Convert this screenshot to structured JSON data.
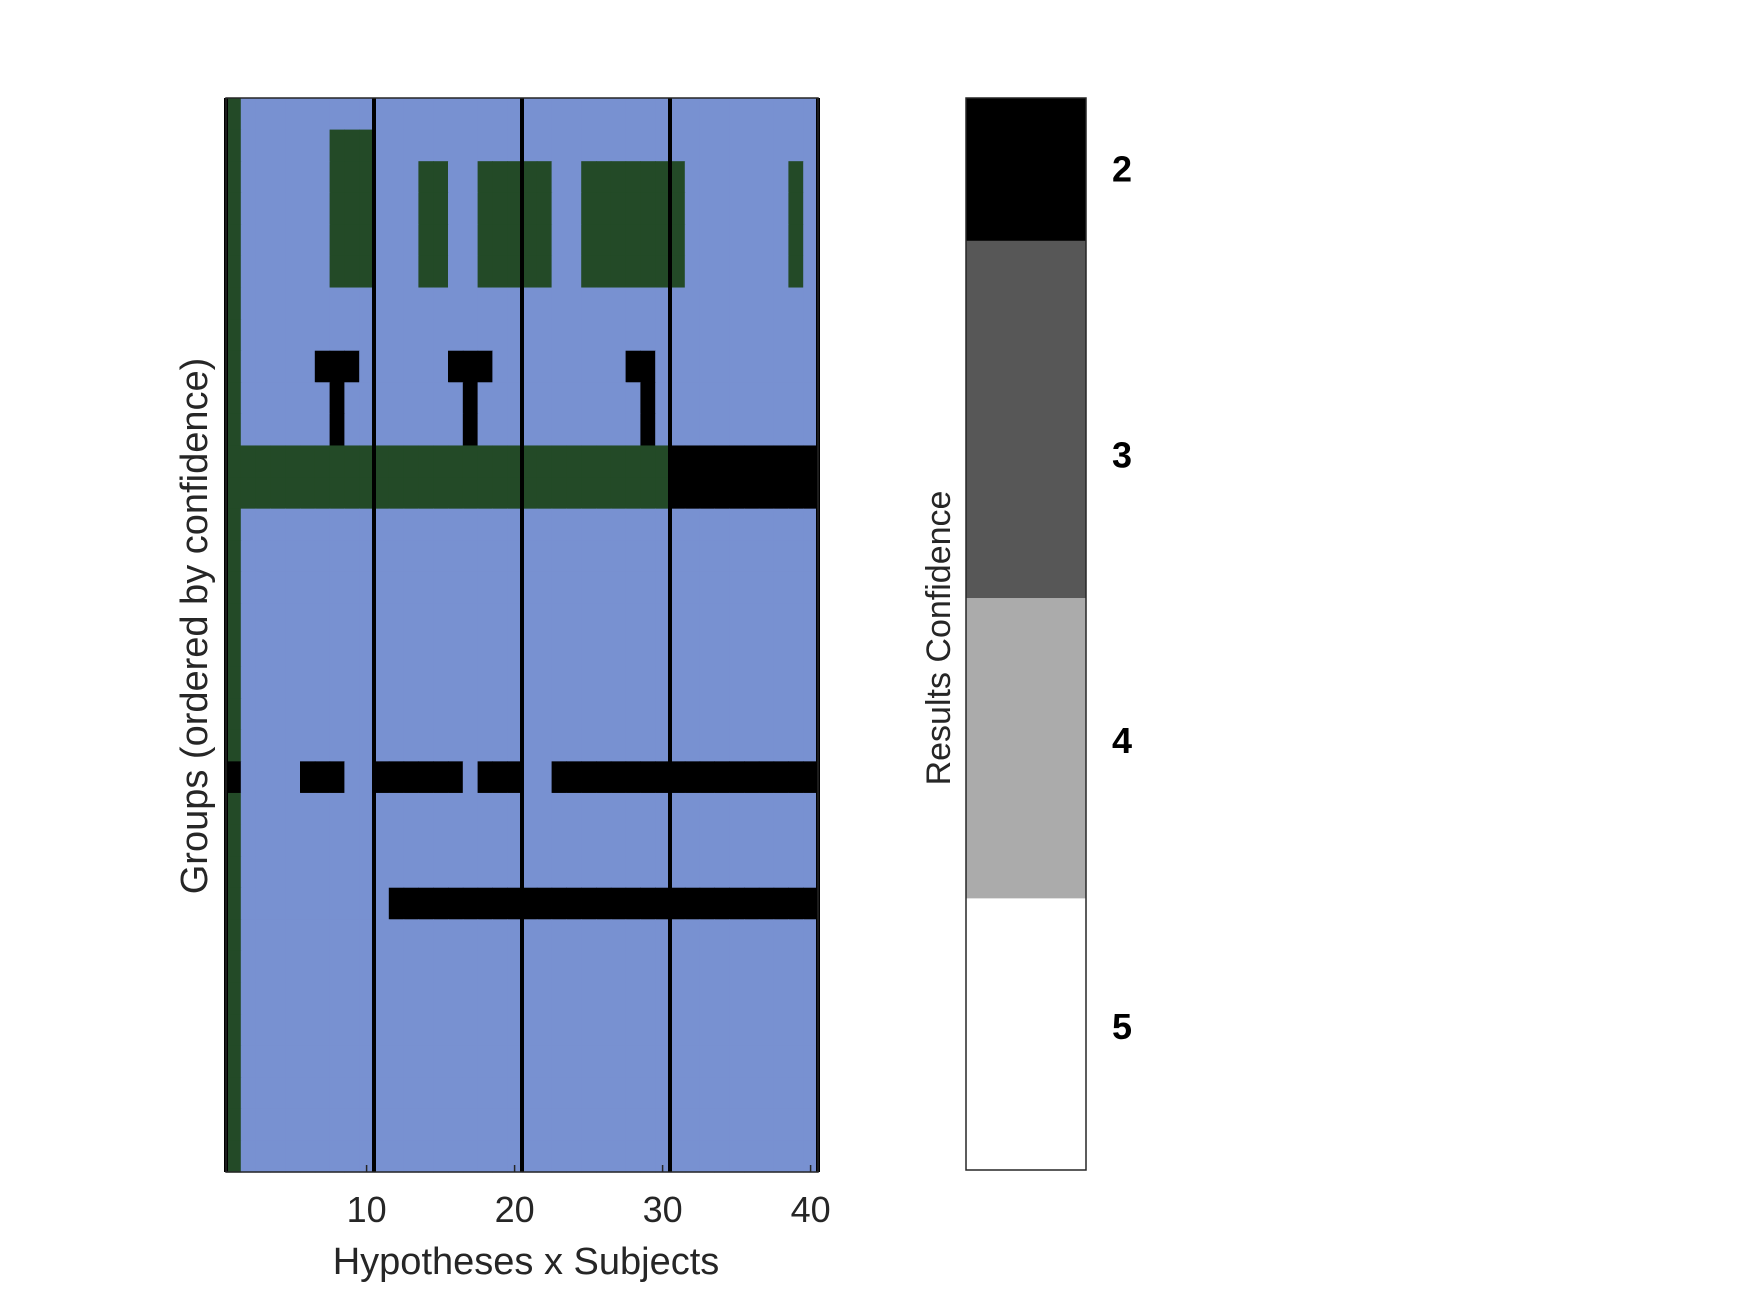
{
  "chart_data": [
    {
      "type": "heatmap",
      "xlabel": "Hypotheses x Subjects",
      "ylabel": "Groups (ordered by confidence)",
      "x_ticks": [
        "10",
        "20",
        "30",
        "40"
      ],
      "x_tick_values": [
        10,
        20,
        30,
        40
      ],
      "xlim": [
        0.5,
        40.5
      ],
      "n_cols": 40,
      "n_rows": 34,
      "colors": {
        "0": "#7891d1",
        "1": "#234a27",
        "2": "#000000"
      },
      "separators_after_col": [
        0,
        10,
        20,
        30,
        40
      ],
      "rows": [
        "1000000000000000000000000000000000000000",
        "1000000111000000000000000000000000000000",
        "1000000111000110011111001111111000000010",
        "1000000111000110011111001111111000000010",
        "1000000111000110011111001111111000000010",
        "1000000111000110011111001111111000000010",
        "1000000000000000000000000000000000000000",
        "1000000000000000000000000000000000000000",
        "1000002220000002220000000002200000000000",
        "1000000200000000200000000000200000000000",
        "1000000200000000200000000000200000000000",
        "1111111111111111111111111111112222222222",
        "1111111111111111111111111111112222222222",
        "1000000000000000000000000000000000000000",
        "1000000000000000000000000000000000000000",
        "1000000000000000000000000000000000000000",
        "1000000000000000000000000000000000000000",
        "1000000000000000000000000000000000000000",
        "1000000000000000000000000000000000000000",
        "1000000000000000000000000000000000000000",
        "1000000000000000000000000000000000000000",
        "2000022200222222022200222222222222222222",
        "1000000000000000000000000000000000000000",
        "1000000000000000000000000000000000000000",
        "1000000000000000000000000000000000000000",
        "1000000000022222222222222222222222222222",
        "1000000000000000000000000000000000000000",
        "1000000000000000000000000000000000000000",
        "1000000000000000000000000000000000000000",
        "1000000000000000000000000000000000000000",
        "1000000000000000000000000000000000000000",
        "1000000000000000000000000000000000000000",
        "1000000000000000000000000000000000000000",
        "1000000000000000000000000000000000000000"
      ]
    },
    {
      "type": "colorbar",
      "label": "Results Confidence",
      "levels": [
        {
          "label": "2",
          "color": "#000000",
          "from": 1.75,
          "to": 2.25
        },
        {
          "label": "3",
          "color": "#575757",
          "from": 2.25,
          "to": 3.5
        },
        {
          "label": "4",
          "color": "#ababab",
          "from": 3.5,
          "to": 4.55
        },
        {
          "label": "5",
          "color": "#ffffff",
          "from": 4.55,
          "to": 5.5
        }
      ],
      "range": [
        1.75,
        5.5
      ]
    }
  ]
}
